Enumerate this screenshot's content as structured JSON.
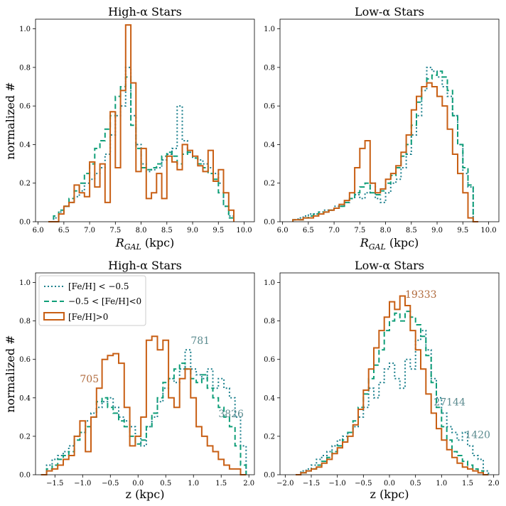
{
  "figure": {
    "ylabel_left": "normalized #"
  },
  "legend": {
    "entries": [
      {
        "label": "[Fe/H] < −0.5",
        "color": "#1a7f8c",
        "dash": "dotted"
      },
      {
        "label": "−0.5 < [Fe/H]<0",
        "color": "#0f9e78",
        "dash": "dashed"
      },
      {
        "label": "[Fe/H]>0",
        "color": "#c85f14",
        "dash": "solid"
      }
    ]
  },
  "colors": {
    "low_metal": "#1a7f8c",
    "mid_metal": "#0f9e78",
    "high_metal": "#c85f14",
    "ann_low": "#5a8a8e",
    "ann_high": "#b06a3c"
  },
  "chart_data": [
    {
      "type": "line",
      "title": "High-α Stars",
      "xlabel": "R_GAL (kpc)",
      "ylabel": "normalized #",
      "xlim": [
        5.95,
        10.2
      ],
      "ylim": [
        0,
        1.05
      ],
      "xticks": [
        "6.0",
        "6.5",
        "7.0",
        "7.5",
        "8.0",
        "8.5",
        "9.0",
        "9.5",
        "10.0"
      ],
      "yticks": [
        "0.0",
        "0.2",
        "0.4",
        "0.6",
        "0.8",
        "1.0"
      ],
      "bin_width": 0.1,
      "x_start": 6.2,
      "series": [
        {
          "name": "[Fe/H] < −0.5",
          "values": [
            0.0,
            0.02,
            0.05,
            0.08,
            0.1,
            0.13,
            0.16,
            0.2,
            0.22,
            0.25,
            0.28,
            0.35,
            0.45,
            0.55,
            0.6,
            0.8,
            0.55,
            0.4,
            0.3,
            0.26,
            0.27,
            0.28,
            0.32,
            0.35,
            0.38,
            0.6,
            0.42,
            0.36,
            0.33,
            0.32,
            0.3,
            0.28,
            0.25,
            0.2,
            0.08,
            0.03
          ]
        },
        {
          "name": "−0.5 < [Fe/H]<0",
          "values": [
            0.0,
            0.03,
            0.06,
            0.08,
            0.12,
            0.16,
            0.2,
            0.25,
            0.3,
            0.38,
            0.42,
            0.48,
            0.55,
            0.65,
            0.7,
            0.75,
            0.5,
            0.38,
            0.28,
            0.27,
            0.28,
            0.3,
            0.34,
            0.36,
            0.34,
            0.3,
            0.35,
            0.36,
            0.33,
            0.3,
            0.28,
            0.25,
            0.22,
            0.15,
            0.08,
            0.02
          ]
        },
        {
          "name": "[Fe/H]>0",
          "values": [
            0.0,
            0.0,
            0.04,
            0.08,
            0.1,
            0.19,
            0.15,
            0.13,
            0.31,
            0.18,
            0.3,
            0.1,
            0.57,
            0.28,
            0.68,
            1.02,
            0.72,
            0.26,
            0.38,
            0.12,
            0.15,
            0.25,
            0.12,
            0.34,
            0.31,
            0.27,
            0.4,
            0.37,
            0.34,
            0.29,
            0.26,
            0.37,
            0.21,
            0.27,
            0.15,
            0.06
          ]
        }
      ]
    },
    {
      "type": "line",
      "title": "Low-α Stars",
      "xlabel": "R_GAL (kpc)",
      "xlim": [
        5.95,
        10.2
      ],
      "ylim": [
        0,
        1.05
      ],
      "xticks": [
        "6.0",
        "6.5",
        "7.0",
        "7.5",
        "8.0",
        "8.5",
        "9.0",
        "9.5",
        "10.0"
      ],
      "yticks": [
        "0.0",
        "0.2",
        "0.4",
        "0.6",
        "0.8",
        "1.0"
      ],
      "bin_width": 0.1,
      "x_start": 6.2,
      "series": [
        {
          "name": "[Fe/H] < −0.5",
          "values": [
            0.01,
            0.02,
            0.03,
            0.04,
            0.04,
            0.05,
            0.06,
            0.06,
            0.08,
            0.08,
            0.1,
            0.12,
            0.14,
            0.12,
            0.15,
            0.2,
            0.12,
            0.1,
            0.15,
            0.2,
            0.22,
            0.28,
            0.35,
            0.45,
            0.55,
            0.68,
            0.8,
            0.78,
            0.75,
            0.7,
            0.65,
            0.55,
            0.4,
            0.25,
            0.18,
            0.0
          ]
        },
        {
          "name": "−0.5 < [Fe/H]<0",
          "values": [
            0.01,
            0.01,
            0.02,
            0.03,
            0.04,
            0.05,
            0.05,
            0.06,
            0.07,
            0.08,
            0.1,
            0.12,
            0.15,
            0.18,
            0.2,
            0.15,
            0.14,
            0.16,
            0.2,
            0.24,
            0.28,
            0.34,
            0.4,
            0.5,
            0.62,
            0.7,
            0.74,
            0.76,
            0.78,
            0.75,
            0.68,
            0.55,
            0.4,
            0.28,
            0.19,
            0.0
          ]
        },
        {
          "name": "[Fe/H]>0",
          "values": [
            0.01,
            0.01,
            0.02,
            0.02,
            0.03,
            0.04,
            0.05,
            0.06,
            0.07,
            0.09,
            0.11,
            0.15,
            0.28,
            0.38,
            0.42,
            0.2,
            0.15,
            0.17,
            0.22,
            0.25,
            0.29,
            0.36,
            0.45,
            0.58,
            0.65,
            0.7,
            0.72,
            0.7,
            0.65,
            0.6,
            0.48,
            0.35,
            0.25,
            0.15,
            0.02,
            0.0
          ]
        }
      ]
    },
    {
      "type": "line",
      "title": "High-α Stars",
      "xlabel": "z (kpc)",
      "ylabel": "normalized #",
      "xlim": [
        -1.85,
        2.1
      ],
      "ylim": [
        0,
        1.05
      ],
      "xticks": [
        "−1.5",
        "−1.0",
        "−0.5",
        "0.0",
        "0.5",
        "1.0",
        "1.5",
        "2.0"
      ],
      "yticks": [
        "0.0",
        "0.2",
        "0.4",
        "0.6",
        "0.8",
        "1.0"
      ],
      "bin_width": 0.1,
      "x_start": -1.75,
      "annotations": [
        {
          "text": "781",
          "x": 0.95,
          "y": 0.68,
          "color_key": "ann_low"
        },
        {
          "text": "705",
          "x": -1.05,
          "y": 0.48,
          "color_key": "ann_high"
        },
        {
          "text": "3826",
          "x": 1.45,
          "y": 0.3,
          "color_key": "ann_low"
        }
      ],
      "series": [
        {
          "name": "[Fe/H] < −0.5",
          "values": [
            0.0,
            0.05,
            0.08,
            0.1,
            0.12,
            0.15,
            0.2,
            0.22,
            0.28,
            0.32,
            0.35,
            0.38,
            0.4,
            0.35,
            0.3,
            0.28,
            0.25,
            0.2,
            0.15,
            0.25,
            0.3,
            0.38,
            0.45,
            0.5,
            0.48,
            0.55,
            0.65,
            0.55,
            0.52,
            0.5,
            0.55,
            0.45,
            0.5,
            0.45,
            0.4,
            0.3,
            0.15
          ]
        },
        {
          "name": "−0.5 < [Fe/H]<0",
          "values": [
            0.0,
            0.03,
            0.05,
            0.08,
            0.1,
            0.12,
            0.18,
            0.22,
            0.25,
            0.3,
            0.38,
            0.4,
            0.35,
            0.32,
            0.28,
            0.25,
            0.2,
            0.16,
            0.18,
            0.25,
            0.32,
            0.4,
            0.48,
            0.5,
            0.55,
            0.58,
            0.55,
            0.5,
            0.48,
            0.52,
            0.45,
            0.4,
            0.35,
            0.3,
            0.25,
            0.15,
            0.05
          ]
        },
        {
          "name": "[Fe/H]>0",
          "values": [
            0.0,
            0.02,
            0.03,
            0.05,
            0.08,
            0.1,
            0.2,
            0.28,
            0.12,
            0.3,
            0.45,
            0.6,
            0.62,
            0.63,
            0.58,
            0.35,
            0.15,
            0.2,
            0.3,
            0.7,
            0.72,
            0.65,
            0.7,
            0.4,
            0.35,
            0.5,
            0.55,
            0.4,
            0.25,
            0.2,
            0.15,
            0.12,
            0.08,
            0.05,
            0.03,
            0.03,
            0.0
          ]
        }
      ]
    },
    {
      "type": "line",
      "title": "Low-α Stars",
      "xlabel": "z (kpc)",
      "xlim": [
        -2.1,
        2.1
      ],
      "ylim": [
        0,
        1.05
      ],
      "xticks": [
        "−2.0",
        "−1.5",
        "−1.0",
        "−0.5",
        "0.0",
        "0.5",
        "1.0",
        "1.5",
        "2.0"
      ],
      "yticks": [
        "0.0",
        "0.2",
        "0.4",
        "0.6",
        "0.8",
        "1.0"
      ],
      "bin_width": 0.1,
      "x_start": -1.8,
      "annotations": [
        {
          "text": "19333",
          "x": 0.3,
          "y": 0.92,
          "color_key": "ann_high"
        },
        {
          "text": "27144",
          "x": 0.85,
          "y": 0.36,
          "color_key": "ann_low"
        },
        {
          "text": "1420",
          "x": 1.45,
          "y": 0.19,
          "color_key": "ann_low"
        }
      ],
      "series": [
        {
          "name": "[Fe/H] < −0.5",
          "values": [
            0.0,
            0.02,
            0.03,
            0.05,
            0.08,
            0.1,
            0.12,
            0.15,
            0.18,
            0.2,
            0.22,
            0.25,
            0.3,
            0.35,
            0.45,
            0.4,
            0.48,
            0.55,
            0.58,
            0.5,
            0.45,
            0.6,
            0.55,
            0.7,
            0.75,
            0.65,
            0.5,
            0.4,
            0.32,
            0.25,
            0.22,
            0.18,
            0.22,
            0.15,
            0.1,
            0.08,
            0.02
          ]
        },
        {
          "name": "−0.5 < [Fe/H]<0",
          "values": [
            0.0,
            0.01,
            0.02,
            0.03,
            0.05,
            0.07,
            0.09,
            0.12,
            0.15,
            0.18,
            0.22,
            0.28,
            0.35,
            0.42,
            0.5,
            0.57,
            0.65,
            0.75,
            0.8,
            0.84,
            0.8,
            0.85,
            0.82,
            0.78,
            0.72,
            0.62,
            0.48,
            0.35,
            0.25,
            0.18,
            0.12,
            0.1,
            0.07,
            0.05,
            0.03,
            0.02,
            0.0
          ]
        },
        {
          "name": "[Fe/H]>0",
          "values": [
            0.0,
            0.01,
            0.02,
            0.03,
            0.04,
            0.06,
            0.08,
            0.11,
            0.14,
            0.17,
            0.2,
            0.26,
            0.34,
            0.44,
            0.55,
            0.66,
            0.75,
            0.82,
            0.9,
            0.86,
            0.93,
            0.88,
            0.75,
            0.65,
            0.55,
            0.42,
            0.32,
            0.24,
            0.18,
            0.13,
            0.09,
            0.06,
            0.04,
            0.03,
            0.02,
            0.01,
            0.0
          ]
        }
      ]
    }
  ]
}
